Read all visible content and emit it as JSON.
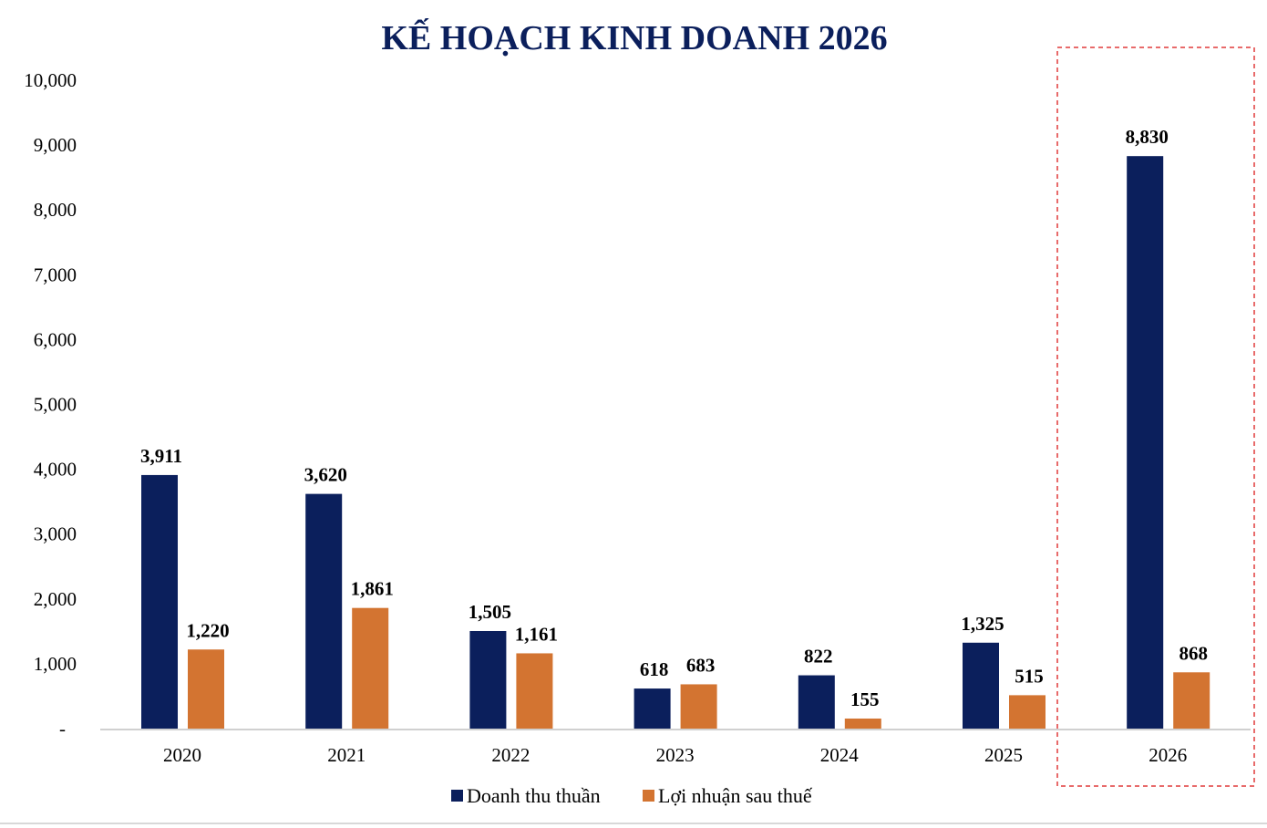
{
  "chart_data": {
    "type": "bar",
    "title": "KẾ HOẠCH KINH DOANH 2026",
    "xlabel": "",
    "ylabel": "",
    "ylim": [
      0,
      10000
    ],
    "yticks": [
      0,
      1000,
      2000,
      3000,
      4000,
      5000,
      6000,
      7000,
      8000,
      9000,
      10000
    ],
    "ytick_labels": [
      "-",
      "1,000",
      "2,000",
      "3,000",
      "4,000",
      "5,000",
      "6,000",
      "7,000",
      "8,000",
      "9,000",
      "10,000"
    ],
    "categories": [
      "2020",
      "2021",
      "2022",
      "2023",
      "2024",
      "2025",
      "2026"
    ],
    "series": [
      {
        "name": "Doanh thu thuần",
        "color": "#0b1f5c",
        "values": [
          3911,
          3620,
          1505,
          618,
          822,
          1325,
          8830
        ],
        "labels": [
          "3,911",
          "3,620",
          "1,505",
          "618",
          "822",
          "1,325",
          "8,830"
        ]
      },
      {
        "name": "Lợi nhuận sau thuế",
        "color": "#d37431",
        "values": [
          1220,
          1861,
          1161,
          683,
          155,
          515,
          868
        ],
        "labels": [
          "1,220",
          "1,861",
          "1,161",
          "683",
          "155",
          "515",
          "868"
        ]
      }
    ],
    "grid": false,
    "legend": "bottom",
    "highlight_category": "2026",
    "highlight_color": "#e03a3a"
  }
}
